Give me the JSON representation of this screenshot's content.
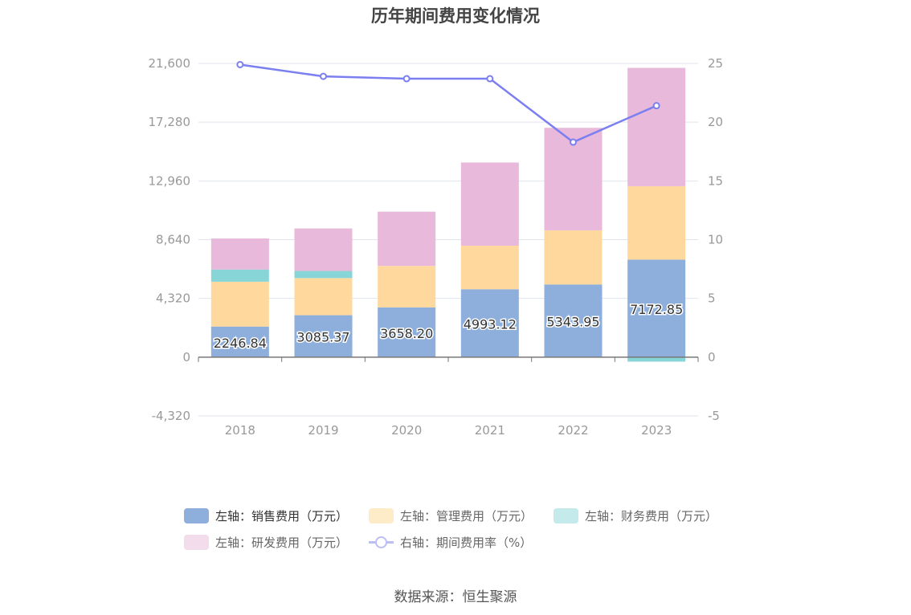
{
  "title": "历年期间费用变化情况",
  "source": "数据来源：恒生聚源",
  "chart_data": {
    "type": "bar",
    "stacked": true,
    "categories": [
      "2018",
      "2019",
      "2020",
      "2021",
      "2022",
      "2023"
    ],
    "left_axis": {
      "ticks": [
        "21,600",
        "17,280",
        "12,960",
        "8,640",
        "4,320",
        "0",
        "-4,320"
      ],
      "range": [
        -4320,
        21600
      ]
    },
    "right_axis": {
      "ticks": [
        "25",
        "20",
        "15",
        "10",
        "5",
        "0",
        "-5"
      ],
      "range": [
        -5,
        25
      ]
    },
    "series": [
      {
        "name": "左轴：销售费用（万元）",
        "axis": "left",
        "color": "#8eaedb",
        "values": [
          2246.84,
          3085.37,
          3658.2,
          4993.12,
          5343.95,
          7172.85
        ],
        "labels": [
          "2246.84",
          "3085.37",
          "3658.20",
          "4993.12",
          "5343.95",
          "7172.85"
        ]
      },
      {
        "name": "左轴：管理费用（万元）",
        "axis": "left",
        "color": "#fed89d",
        "values": [
          3300,
          2730,
          3050,
          3200,
          3980,
          5400
        ]
      },
      {
        "name": "左轴：财务费用（万元）",
        "axis": "left",
        "color": "#88d5d8",
        "values": [
          900,
          520,
          0,
          0,
          0,
          -330
        ]
      },
      {
        "name": "左轴：研发费用（万元）",
        "axis": "left",
        "color": "#e8b9da",
        "values": [
          2280,
          3130,
          3990,
          6120,
          7540,
          8700
        ]
      },
      {
        "name": "右轴：期间费用率（%）",
        "axis": "right",
        "type": "line",
        "color": "#7b7ff0",
        "values": [
          24.9,
          23.9,
          23.7,
          23.7,
          18.3,
          21.4
        ]
      }
    ],
    "grid": true,
    "legend_position": "bottom"
  }
}
